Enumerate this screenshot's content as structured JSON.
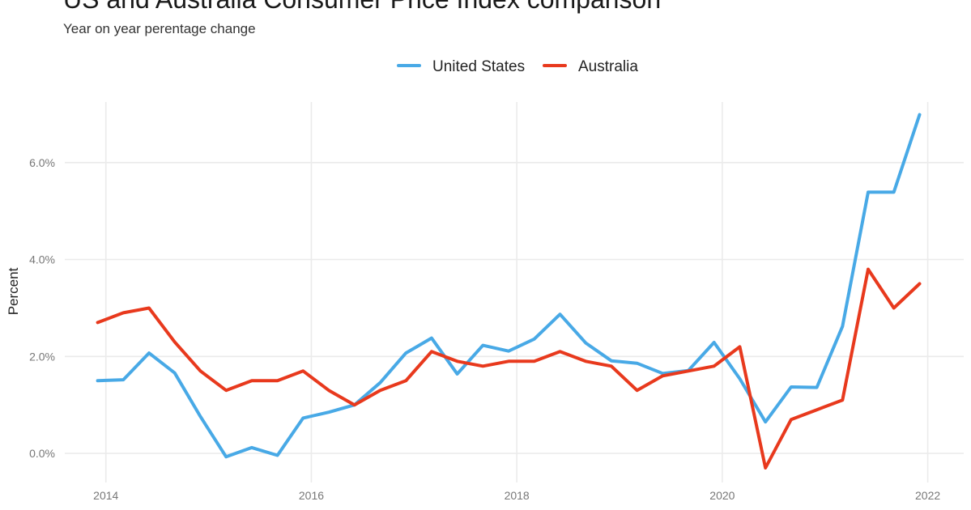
{
  "chart_data": {
    "type": "line",
    "title": "US and Australia Consumer Price Index comparison",
    "subtitle": "Year on year perentage change",
    "xlabel": "",
    "ylabel": "Percent",
    "x_ticks": [
      2014,
      2016,
      2018,
      2020,
      2022
    ],
    "y_ticks": [
      {
        "value": 0,
        "label": "0.0%"
      },
      {
        "value": 2,
        "label": "2.0%"
      },
      {
        "value": 4,
        "label": "4.0%"
      },
      {
        "value": 6,
        "label": "6.0%"
      }
    ],
    "xlim": [
      2013.6,
      2022.35
    ],
    "ylim": [
      -0.6,
      7.35
    ],
    "grid": true,
    "legend_position": "top",
    "x": [
      2013.92,
      2014.17,
      2014.42,
      2014.67,
      2014.92,
      2015.17,
      2015.42,
      2015.67,
      2015.92,
      2016.17,
      2016.42,
      2016.67,
      2016.92,
      2017.17,
      2017.42,
      2017.67,
      2017.92,
      2018.17,
      2018.42,
      2018.67,
      2018.92,
      2019.17,
      2019.42,
      2019.67,
      2019.92,
      2020.17,
      2020.42,
      2020.67,
      2020.92,
      2021.17,
      2021.42,
      2021.67,
      2021.92
    ],
    "series": [
      {
        "name": "United States",
        "color": "#48a9e6",
        "values": [
          1.5,
          1.52,
          2.07,
          1.66,
          0.76,
          -0.07,
          0.12,
          -0.04,
          0.73,
          0.85,
          1.0,
          1.46,
          2.07,
          2.38,
          1.64,
          2.23,
          2.11,
          2.36,
          2.87,
          2.28,
          1.91,
          1.86,
          1.65,
          1.71,
          2.29,
          1.54,
          0.65,
          1.37,
          1.36,
          2.62,
          5.39,
          5.39,
          6.99
        ]
      },
      {
        "name": "Australia",
        "color": "#e8391d",
        "values": [
          2.7,
          2.9,
          3.0,
          2.3,
          1.7,
          1.3,
          1.5,
          1.5,
          1.7,
          1.3,
          1.0,
          1.3,
          1.5,
          2.1,
          1.9,
          1.8,
          1.9,
          1.9,
          2.1,
          1.9,
          1.8,
          1.3,
          1.6,
          1.7,
          1.8,
          2.2,
          -0.3,
          0.7,
          0.9,
          1.1,
          3.8,
          3.0,
          3.5
        ]
      }
    ]
  }
}
